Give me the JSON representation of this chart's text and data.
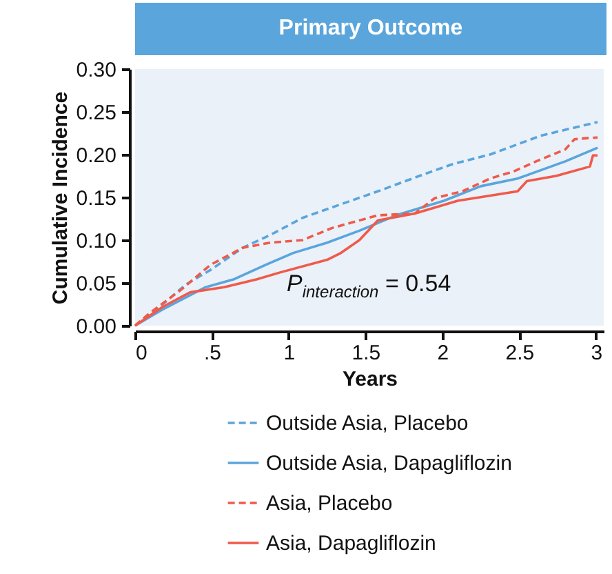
{
  "chart_data": {
    "type": "line",
    "title": "Primary Outcome",
    "xlabel": "Years",
    "ylabel": "Cumulative Incidence",
    "annotations": [
      "P$_{interaction}$ = 0.54"
    ],
    "xlim": [
      0,
      3.05
    ],
    "ylim": [
      0,
      0.3
    ],
    "xticks": [
      0,
      {
        "value": 0.5,
        "label": ".5"
      },
      1,
      1.5,
      2,
      2.5,
      3
    ],
    "yticks": [
      {
        "value": 0,
        "label": "0.00"
      },
      {
        "value": 0.05,
        "label": "0.05"
      },
      {
        "value": 0.1,
        "label": "0.10"
      },
      {
        "value": 0.15,
        "label": "0.15"
      },
      {
        "value": 0.2,
        "label": "0.20"
      },
      {
        "value": 0.25,
        "label": "0.25"
      },
      {
        "value": 0.3,
        "label": "0.30"
      }
    ],
    "grid": false,
    "legend": "bottom",
    "series": [
      {
        "name": "Outside Asia, Placebo",
        "color": "#5aa5dc",
        "line_style": "dashed",
        "x": [
          0,
          0.18,
          0.33,
          0.49,
          0.7,
          0.88,
          1.09,
          1.31,
          1.58,
          1.85,
          2.07,
          2.31,
          2.64,
          3.01
        ],
        "values": [
          0,
          0.025,
          0.048,
          0.065,
          0.091,
          0.106,
          0.126,
          0.14,
          0.157,
          0.175,
          0.189,
          0.2,
          0.222,
          0.238
        ]
      },
      {
        "name": "Outside Asia, Dapagliflozin",
        "color": "#5aa5dc",
        "line_style": "solid",
        "x": [
          0,
          0.18,
          0.46,
          0.64,
          0.85,
          1.03,
          1.25,
          1.46,
          1.7,
          2.01,
          2.25,
          2.49,
          2.8,
          3.01
        ],
        "values": [
          0,
          0.019,
          0.045,
          0.054,
          0.071,
          0.085,
          0.097,
          0.111,
          0.129,
          0.146,
          0.163,
          0.172,
          0.192,
          0.208
        ]
      },
      {
        "name": "Asia, Placebo",
        "color": "#f05a4a",
        "line_style": "dashed",
        "x": [
          0,
          0.09,
          0.3,
          0.49,
          0.7,
          0.88,
          1.09,
          1.28,
          1.58,
          1.82,
          1.95,
          2.13,
          2.31,
          2.46,
          2.61,
          2.8,
          2.86,
          3.01
        ],
        "values": [
          0,
          0.014,
          0.042,
          0.071,
          0.091,
          0.097,
          0.1,
          0.114,
          0.129,
          0.131,
          0.149,
          0.157,
          0.172,
          0.18,
          0.192,
          0.206,
          0.218,
          0.22
        ]
      },
      {
        "name": "Asia, Dapagliflozin",
        "color": "#f05a4a",
        "line_style": "solid",
        "x": [
          0,
          0.18,
          0.36,
          0.58,
          0.79,
          0.94,
          1.25,
          1.34,
          1.46,
          1.58,
          1.82,
          2.1,
          2.49,
          2.55,
          2.74,
          2.96,
          2.98,
          3.01
        ],
        "values": [
          0,
          0.022,
          0.039,
          0.045,
          0.054,
          0.062,
          0.077,
          0.085,
          0.1,
          0.123,
          0.131,
          0.146,
          0.157,
          0.169,
          0.175,
          0.186,
          0.199,
          0.199
        ]
      }
    ]
  }
}
